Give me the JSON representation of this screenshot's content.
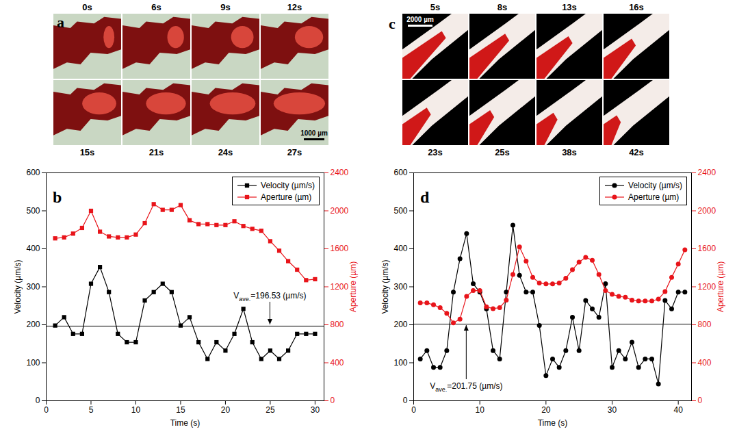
{
  "panels": [
    {
      "panel": "a",
      "type": "image",
      "frame_times": [
        "0s",
        "6s",
        "9s",
        "12s",
        "15s",
        "21s",
        "24s",
        "27s"
      ],
      "scale_bar": "1000 µm"
    },
    {
      "panel": "c",
      "type": "image",
      "frame_times": [
        "5s",
        "8s",
        "13s",
        "16s",
        "23s",
        "25s",
        "38s",
        "42s"
      ],
      "scale_bar": "2000 µm"
    }
  ],
  "chart_data": [
    {
      "type": "line",
      "panel_label": "b",
      "x": [
        1,
        2,
        3,
        4,
        5,
        6,
        7,
        8,
        9,
        10,
        11,
        12,
        13,
        14,
        15,
        16,
        17,
        18,
        19,
        20,
        21,
        22,
        23,
        24,
        25,
        26,
        27,
        28,
        29,
        30
      ],
      "xlim": [
        0,
        31
      ],
      "xticks": [
        0,
        5,
        10,
        15,
        20,
        25,
        30
      ],
      "ylim": [
        0,
        600
      ],
      "yticks": [
        0,
        100,
        200,
        300,
        400,
        500,
        600
      ],
      "y2lim": [
        0,
        2400
      ],
      "y2ticks": [
        0,
        400,
        800,
        1200,
        1600,
        2000,
        2400
      ],
      "x_label": "Time (s)",
      "y_label": "Velocity (µm/s)",
      "y2_label": "Aperture (µm)",
      "legend": "top-right",
      "series": [
        {
          "name": "Velocity (µm/s)",
          "color": "#000000",
          "marker": "square",
          "values": [
            198,
            220,
            176,
            176,
            308,
            352,
            286,
            176,
            154,
            154,
            264,
            286,
            308,
            286,
            198,
            220,
            154,
            110,
            154,
            132,
            176,
            242,
            154,
            110,
            132,
            110,
            132,
            176,
            176,
            176
          ]
        },
        {
          "name": "Aperture (µm)",
          "color": "#e8141a",
          "marker": "square",
          "axis": "y2",
          "values": [
            1710,
            1720,
            1760,
            1820,
            2000,
            1780,
            1730,
            1720,
            1720,
            1750,
            1870,
            2070,
            2010,
            2010,
            2060,
            1900,
            1860,
            1860,
            1850,
            1850,
            1890,
            1840,
            1810,
            1790,
            1680,
            1580,
            1470,
            1380,
            1270,
            1280
          ]
        }
      ],
      "average": {
        "value": 196.53,
        "x": 25,
        "symbol": "V",
        "subscript": "ave.",
        "text": "=196.53 (µm/s)"
      }
    },
    {
      "type": "line",
      "panel_label": "d",
      "x": [
        1,
        2,
        3,
        4,
        5,
        6,
        7,
        8,
        9,
        10,
        11,
        12,
        13,
        14,
        15,
        16,
        17,
        18,
        19,
        20,
        21,
        22,
        23,
        24,
        25,
        26,
        27,
        28,
        29,
        30,
        31,
        32,
        33,
        34,
        35,
        36,
        37,
        38,
        39,
        40,
        41
      ],
      "xlim": [
        0,
        42
      ],
      "xticks": [
        0,
        10,
        20,
        30,
        40
      ],
      "ylim": [
        0,
        600
      ],
      "yticks": [
        0,
        100,
        200,
        300,
        400,
        500,
        600
      ],
      "y2lim": [
        0,
        2400
      ],
      "y2ticks": [
        0,
        400,
        800,
        1200,
        1600,
        2000,
        2400
      ],
      "x_label": "Time (s)",
      "y_label": "Velocity (µm/s)",
      "y2_label": "Aperture (µm)",
      "legend": "top-right",
      "series": [
        {
          "name": "Velocity (µm/s)",
          "color": "#000000",
          "marker": "circle",
          "values": [
            110,
            132,
            88,
            88,
            132,
            286,
            374,
            440,
            308,
            286,
            242,
            132,
            110,
            286,
            462,
            330,
            286,
            286,
            198,
            66,
            110,
            88,
            132,
            220,
            132,
            264,
            242,
            220,
            308,
            88,
            132,
            110,
            154,
            88,
            110,
            110,
            44,
            264,
            242,
            286,
            286
          ]
        },
        {
          "name": "Aperture (µm)",
          "color": "#e8141a",
          "marker": "circle",
          "axis": "y2",
          "values": [
            1030,
            1030,
            1010,
            980,
            920,
            820,
            860,
            1100,
            1160,
            1160,
            990,
            970,
            980,
            1060,
            1330,
            1620,
            1470,
            1300,
            1240,
            1230,
            1230,
            1240,
            1290,
            1380,
            1460,
            1510,
            1480,
            1330,
            1160,
            1120,
            1100,
            1090,
            1060,
            1050,
            1050,
            1050,
            1070,
            1150,
            1300,
            1440,
            1590
          ]
        }
      ],
      "average": {
        "value": 201.75,
        "x": 8,
        "symbol": "V",
        "subscript": "ave.",
        "text": "=201.75 (µm/s)"
      }
    }
  ]
}
